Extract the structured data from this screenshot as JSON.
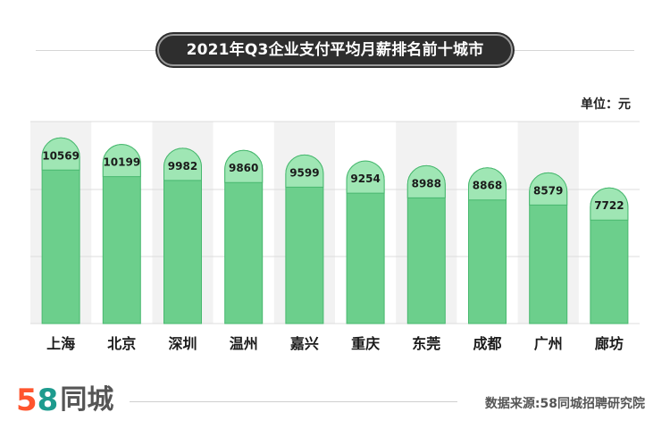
{
  "header": {
    "title": "2021年Q3企业支付平均月薪排名前十城市",
    "unit": "单位：元"
  },
  "chart_data": {
    "type": "bar",
    "categories": [
      "上海",
      "北京",
      "深圳",
      "温州",
      "嘉兴",
      "重庆",
      "东莞",
      "成都",
      "广州",
      "廊坊"
    ],
    "values": [
      10569,
      10199,
      9982,
      9860,
      9599,
      9254,
      8988,
      8868,
      8579,
      7722
    ],
    "ylim": [
      0,
      11500
    ],
    "grid": true,
    "colors": {
      "bar": "#6ccf8c",
      "bar_cap": "#9fe6b4",
      "bar_stroke": "#48b86f",
      "alt_band": "#f2f2f2"
    }
  },
  "footer": {
    "logo_digit1": "5",
    "logo_digit2": "8",
    "logo_name": "同城",
    "source": "数据来源:58同城招聘研究院"
  }
}
